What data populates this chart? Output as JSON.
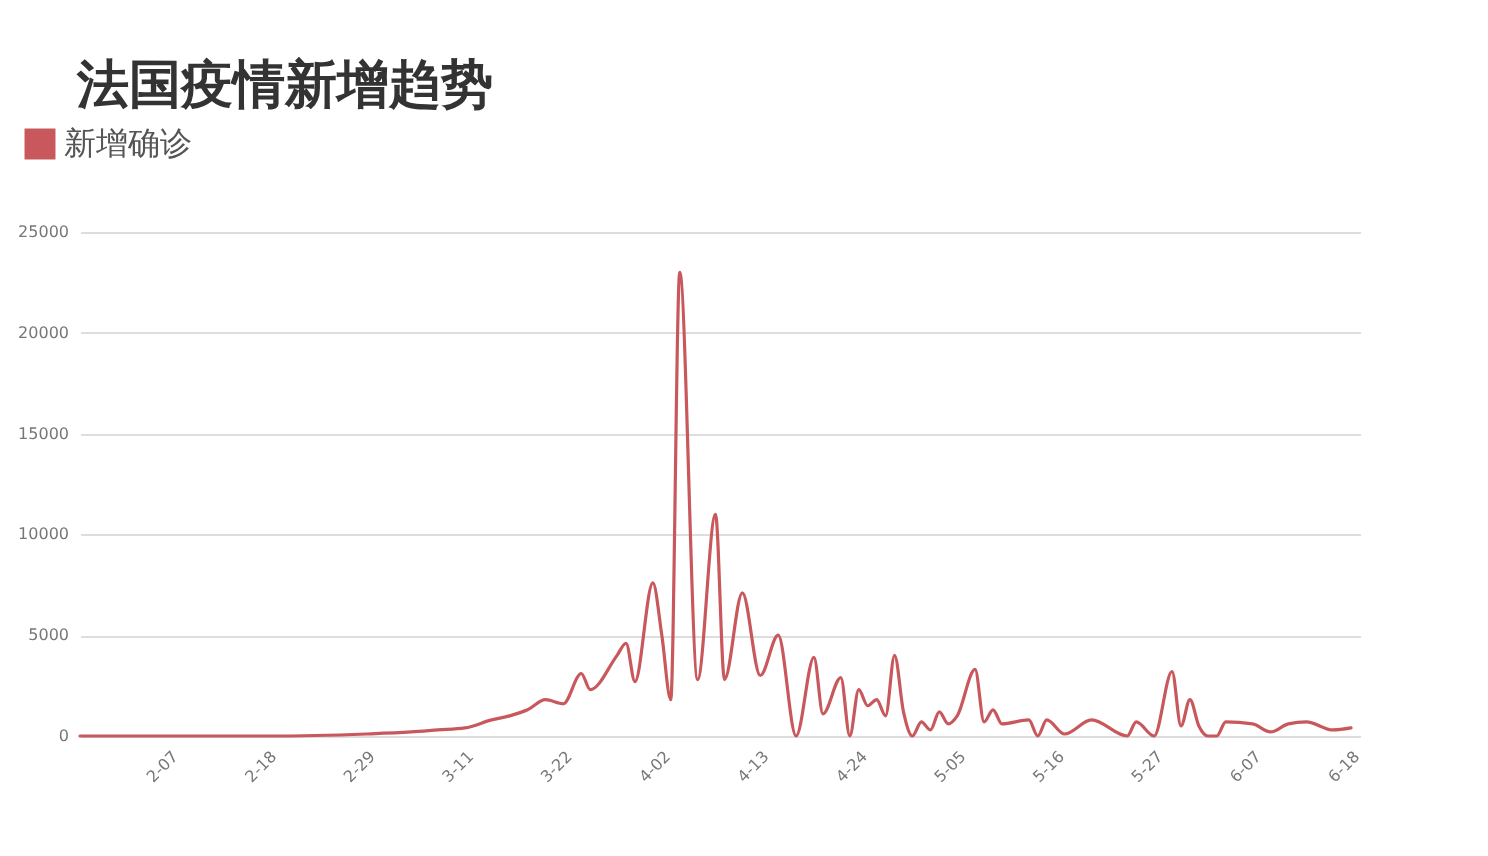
{
  "chart_data": {
    "type": "line",
    "title": "法国疫情新增趋势",
    "legend": "top left",
    "grid": "y",
    "line_style": "solid",
    "marker": "none",
    "xlim": [
      "--01-28",
      "--06-19"
    ],
    "xticks": [
      {
        "value": "--02-07",
        "label": "2-07"
      },
      {
        "value": "--02-18",
        "label": "2-18"
      },
      {
        "value": "--02-29",
        "label": "2-29"
      },
      {
        "value": "--03-11",
        "label": "3-11"
      },
      {
        "value": "--03-22",
        "label": "3-22"
      },
      {
        "value": "--04-02",
        "label": "4-02"
      },
      {
        "value": "--04-13",
        "label": "4-13"
      },
      {
        "value": "--04-24",
        "label": "4-24"
      },
      {
        "value": "--05-05",
        "label": "5-05"
      },
      {
        "value": "--05-16",
        "label": "5-16"
      },
      {
        "value": "--05-27",
        "label": "5-27"
      },
      {
        "value": "--06-07",
        "label": "6-07"
      },
      {
        "value": "--06-18",
        "label": "6-18"
      }
    ],
    "ylim": [
      0,
      25000
    ],
    "yticks": [
      0,
      5000,
      10000,
      15000,
      20000,
      25000
    ],
    "x": [
      "--01-28",
      "--02-07",
      "--02-18",
      "--02-29",
      "--03-05",
      "--03-08",
      "--03-11",
      "--03-14",
      "--03-16",
      "--03-18",
      "--03-20",
      "--03-22",
      "--03-24",
      "--03-25",
      "--03-28",
      "--03-29",
      "--03-30",
      "--04-01",
      "--04-02",
      "--04-03",
      "--04-04",
      "--04-06",
      "--04-08",
      "--04-09",
      "--04-11",
      "--04-13",
      "--04-15",
      "--04-17",
      "--04-19",
      "--04-20",
      "--04-22",
      "--04-23",
      "--04-24",
      "--04-25",
      "--04-26",
      "--04-27",
      "--04-28",
      "--04-29",
      "--04-30",
      "--05-01",
      "--05-02",
      "--05-03",
      "--05-04",
      "--05-05",
      "--05-07",
      "--05-08",
      "--05-09",
      "--05-10",
      "--05-13",
      "--05-14",
      "--05-15",
      "--05-17",
      "--05-20",
      "--05-24",
      "--05-25",
      "--05-27",
      "--05-29",
      "--05-30",
      "--05-31",
      "--06-01",
      "--06-02",
      "--06-03",
      "--06-04",
      "--06-07",
      "--06-09",
      "--06-11",
      "--06-13",
      "--06-16",
      "--06-18"
    ],
    "series": [
      {
        "name": "新增确诊",
        "color": "#c8585c",
        "values": [
          0,
          0,
          0,
          100,
          200,
          300,
          400,
          800,
          1000,
          1300,
          1800,
          1600,
          3100,
          2300,
          4000,
          4600,
          2700,
          7600,
          5000,
          1800,
          23000,
          2800,
          11000,
          2800,
          7100,
          3000,
          5000,
          0,
          3900,
          1100,
          2900,
          0,
          2300,
          1500,
          1800,
          1000,
          4000,
          1200,
          0,
          700,
          300,
          1200,
          600,
          1000,
          3300,
          700,
          1300,
          600,
          800,
          0,
          800,
          100,
          800,
          0,
          700,
          0,
          3200,
          500,
          1800,
          500,
          0,
          0,
          700,
          600,
          200,
          600,
          700,
          300,
          400
        ]
      }
    ]
  }
}
